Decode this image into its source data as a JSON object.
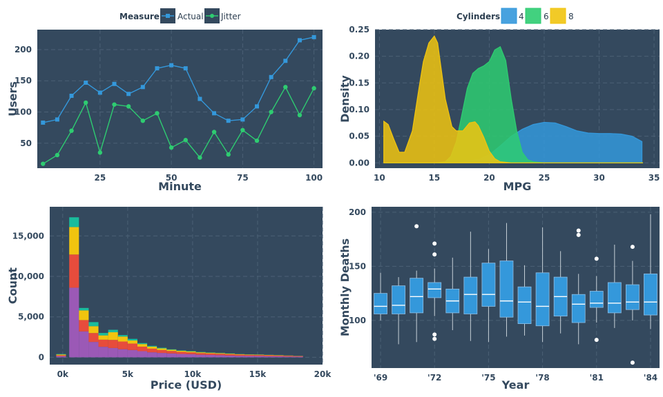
{
  "theme": {
    "panel": "#34495e",
    "grid": "#4b6075",
    "text": "#34495e",
    "blue": "#3498db",
    "green": "#2ecc71",
    "yellow": "#f1c40f",
    "red": "#e74c3c",
    "purple": "#9b59b6",
    "teal": "#1abc9c"
  },
  "chart_data": [
    {
      "type": "line",
      "legend": {
        "title": "Measure",
        "entries": [
          "Actual",
          "Jitter"
        ],
        "placement": "top"
      },
      "xlabel": "Minute",
      "ylabel": "Users",
      "xlim": [
        3,
        103
      ],
      "ylim": [
        10,
        232
      ],
      "xticks": [
        25,
        50,
        75,
        100
      ],
      "xtick_labels": [
        "25",
        "50",
        "75",
        "100"
      ],
      "yticks": [
        50,
        100,
        150,
        200
      ],
      "ytick_labels": [
        "50",
        "100",
        "150",
        "200"
      ],
      "x": [
        5,
        10,
        15,
        20,
        25,
        30,
        35,
        40,
        45,
        50,
        55,
        60,
        65,
        70,
        75,
        80,
        85,
        90,
        95,
        100
      ],
      "series": [
        {
          "name": "Actual",
          "values": [
            83,
            88,
            126,
            147,
            131,
            145,
            129,
            140,
            170,
            175,
            170,
            121,
            98,
            86,
            88,
            109,
            156,
            182,
            215,
            220
          ]
        },
        {
          "name": "Jitter",
          "values": [
            17,
            31,
            70,
            115,
            35,
            112,
            109,
            86,
            98,
            43,
            55,
            27,
            68,
            32,
            71,
            54,
            100,
            140,
            95,
            138
          ]
        }
      ]
    },
    {
      "type": "area",
      "legend": {
        "title": "Cylinders",
        "entries": [
          "4",
          "6",
          "8"
        ],
        "placement": "top"
      },
      "xlabel": "MPG",
      "ylabel": "Density",
      "xlim": [
        9.6,
        35.5
      ],
      "ylim": [
        -0.01,
        0.25
      ],
      "xticks": [
        10,
        15,
        20,
        25,
        30,
        35
      ],
      "xtick_labels": [
        "10",
        "15",
        "20",
        "25",
        "30",
        "35"
      ],
      "yticks": [
        0,
        0.05,
        0.1,
        0.15,
        0.2,
        0.25
      ],
      "ytick_labels": [
        "0.00",
        "0.05",
        "0.10",
        "0.15",
        "0.20",
        "0.25"
      ],
      "series": [
        {
          "name": "4",
          "x": [
            10.4,
            15,
            17,
            19,
            20,
            21,
            22,
            23,
            24,
            25,
            26,
            27,
            28,
            29,
            30,
            31,
            32,
            33,
            33.9
          ],
          "values": [
            0,
            0,
            0.001,
            0.006,
            0.015,
            0.032,
            0.05,
            0.063,
            0.072,
            0.076,
            0.075,
            0.068,
            0.06,
            0.056,
            0.055,
            0.055,
            0.054,
            0.05,
            0.04
          ]
        },
        {
          "name": "6",
          "x": [
            10.4,
            15,
            16,
            16.5,
            17,
            17.5,
            18,
            18.5,
            19,
            19.5,
            20,
            20.5,
            21,
            21.5,
            22,
            22.5,
            23,
            23.5,
            24,
            25,
            34
          ],
          "values": [
            0,
            0,
            0.002,
            0.012,
            0.04,
            0.09,
            0.14,
            0.168,
            0.177,
            0.182,
            0.19,
            0.212,
            0.218,
            0.192,
            0.12,
            0.06,
            0.02,
            0.006,
            0.002,
            0,
            0
          ]
        },
        {
          "name": "8",
          "x": [
            10.4,
            10.8,
            11.3,
            11.8,
            12.3,
            13,
            13.6,
            14,
            14.5,
            15,
            15.3,
            15.6,
            16,
            16.6,
            17,
            17.6,
            18.2,
            18.7,
            19,
            19.5,
            20,
            20.5,
            21,
            22,
            34
          ],
          "values": [
            0.078,
            0.072,
            0.045,
            0.02,
            0.02,
            0.06,
            0.14,
            0.19,
            0.225,
            0.238,
            0.225,
            0.18,
            0.12,
            0.068,
            0.06,
            0.06,
            0.075,
            0.077,
            0.07,
            0.048,
            0.022,
            0.008,
            0.002,
            0,
            0
          ]
        }
      ]
    },
    {
      "type": "bar",
      "stacked": true,
      "xlabel": "Price (USD)",
      "ylabel": "Count",
      "xlim": [
        -1000,
        20000
      ],
      "ylim": [
        -900,
        18600
      ],
      "xticks": [
        0,
        5000,
        10000,
        15000,
        20000
      ],
      "xtick_labels": [
        "0k",
        "5k",
        "10k",
        "15k",
        "20k"
      ],
      "yticks": [
        0,
        5000,
        10000,
        15000
      ],
      "ytick_labels": [
        "0",
        "5,000",
        "10,000",
        "15,000"
      ],
      "bin_starts": [
        -500,
        500,
        1250,
        2000,
        2750,
        3500,
        4250,
        5000,
        5750,
        6500,
        7250,
        8000,
        8750,
        9500,
        10250,
        11000,
        11750,
        12500,
        13250,
        14000,
        14750,
        15500,
        16250,
        17000,
        17750
      ],
      "bin_width": 750,
      "series": [
        {
          "name": "purple",
          "values": [
            150,
            8600,
            3200,
            1900,
            1300,
            1150,
            1000,
            900,
            760,
            620,
            540,
            480,
            420,
            390,
            320,
            290,
            260,
            220,
            190,
            170,
            160,
            140,
            120,
            100,
            80
          ]
        },
        {
          "name": "red",
          "values": [
            100,
            4100,
            1400,
            1100,
            880,
            1000,
            950,
            800,
            560,
            450,
            360,
            300,
            250,
            220,
            200,
            190,
            180,
            160,
            140,
            130,
            120,
            110,
            100,
            90,
            70
          ]
        },
        {
          "name": "yellow",
          "values": [
            100,
            3400,
            1200,
            850,
            530,
            950,
            620,
            380,
            320,
            250,
            200,
            150,
            130,
            120,
            100,
            90,
            80,
            70,
            60,
            50,
            50,
            40,
            40,
            30,
            20
          ]
        },
        {
          "name": "teal",
          "values": [
            60,
            1200,
            300,
            500,
            300,
            300,
            180,
            200,
            120,
            100,
            80,
            60,
            50,
            50,
            40,
            30,
            30,
            30,
            20,
            20,
            20,
            20,
            20,
            10,
            10
          ]
        }
      ]
    },
    {
      "type": "box",
      "xlabel": "Year",
      "ylabel": "Monthly Deaths",
      "xlim": [
        1968.5,
        1984.5
      ],
      "ylim": [
        56,
        205
      ],
      "xticks": [
        1969,
        1972,
        1975,
        1978,
        1981,
        1984
      ],
      "xtick_labels": [
        "'69",
        "'72",
        "'75",
        "'78",
        "'81",
        "'84"
      ],
      "yticks": [
        100,
        150,
        200
      ],
      "ytick_labels": [
        "100",
        "150",
        "200"
      ],
      "boxes": [
        {
          "year": 1969,
          "min": 100,
          "q1": 106,
          "median": 113,
          "q3": 125,
          "max": 144,
          "outliers": []
        },
        {
          "year": 1970,
          "min": 78,
          "q1": 106,
          "median": 114,
          "q3": 132,
          "max": 140,
          "outliers": []
        },
        {
          "year": 1971,
          "min": 80,
          "q1": 107,
          "median": 122,
          "q3": 139,
          "max": 146,
          "outliers": [
            187
          ]
        },
        {
          "year": 1972,
          "min": 104,
          "q1": 121,
          "median": 129,
          "q3": 135,
          "max": 148,
          "outliers": [
            171,
            161,
            87,
            83
          ]
        },
        {
          "year": 1973,
          "min": 91,
          "q1": 107,
          "median": 118,
          "q3": 129,
          "max": 158,
          "outliers": []
        },
        {
          "year": 1974,
          "min": 81,
          "q1": 106,
          "median": 124,
          "q3": 140,
          "max": 182,
          "outliers": []
        },
        {
          "year": 1975,
          "min": 80,
          "q1": 113,
          "median": 124,
          "q3": 153,
          "max": 166,
          "outliers": []
        },
        {
          "year": 1976,
          "min": 85,
          "q1": 103,
          "median": 118,
          "q3": 155,
          "max": 190,
          "outliers": []
        },
        {
          "year": 1977,
          "min": 86,
          "q1": 97,
          "median": 117,
          "q3": 131,
          "max": 151,
          "outliers": []
        },
        {
          "year": 1978,
          "min": 80,
          "q1": 95,
          "median": 113,
          "q3": 144,
          "max": 186,
          "outliers": []
        },
        {
          "year": 1979,
          "min": 88,
          "q1": 104,
          "median": 122,
          "q3": 140,
          "max": 164,
          "outliers": []
        },
        {
          "year": 1980,
          "min": 78,
          "q1": 98,
          "median": 115,
          "q3": 124,
          "max": 143,
          "outliers": [
            183,
            179
          ]
        },
        {
          "year": 1981,
          "min": 98,
          "q1": 112,
          "median": 116,
          "q3": 127,
          "max": 141,
          "outliers": [
            157,
            82
          ]
        },
        {
          "year": 1982,
          "min": 93,
          "q1": 107,
          "median": 116,
          "q3": 135,
          "max": 170,
          "outliers": []
        },
        {
          "year": 1983,
          "min": 100,
          "q1": 110,
          "median": 117,
          "q3": 133,
          "max": 155,
          "outliers": [
            168,
            61
          ]
        },
        {
          "year": 1984,
          "min": 92,
          "q1": 105,
          "median": 117,
          "q3": 143,
          "max": 198,
          "outliers": []
        }
      ]
    }
  ]
}
